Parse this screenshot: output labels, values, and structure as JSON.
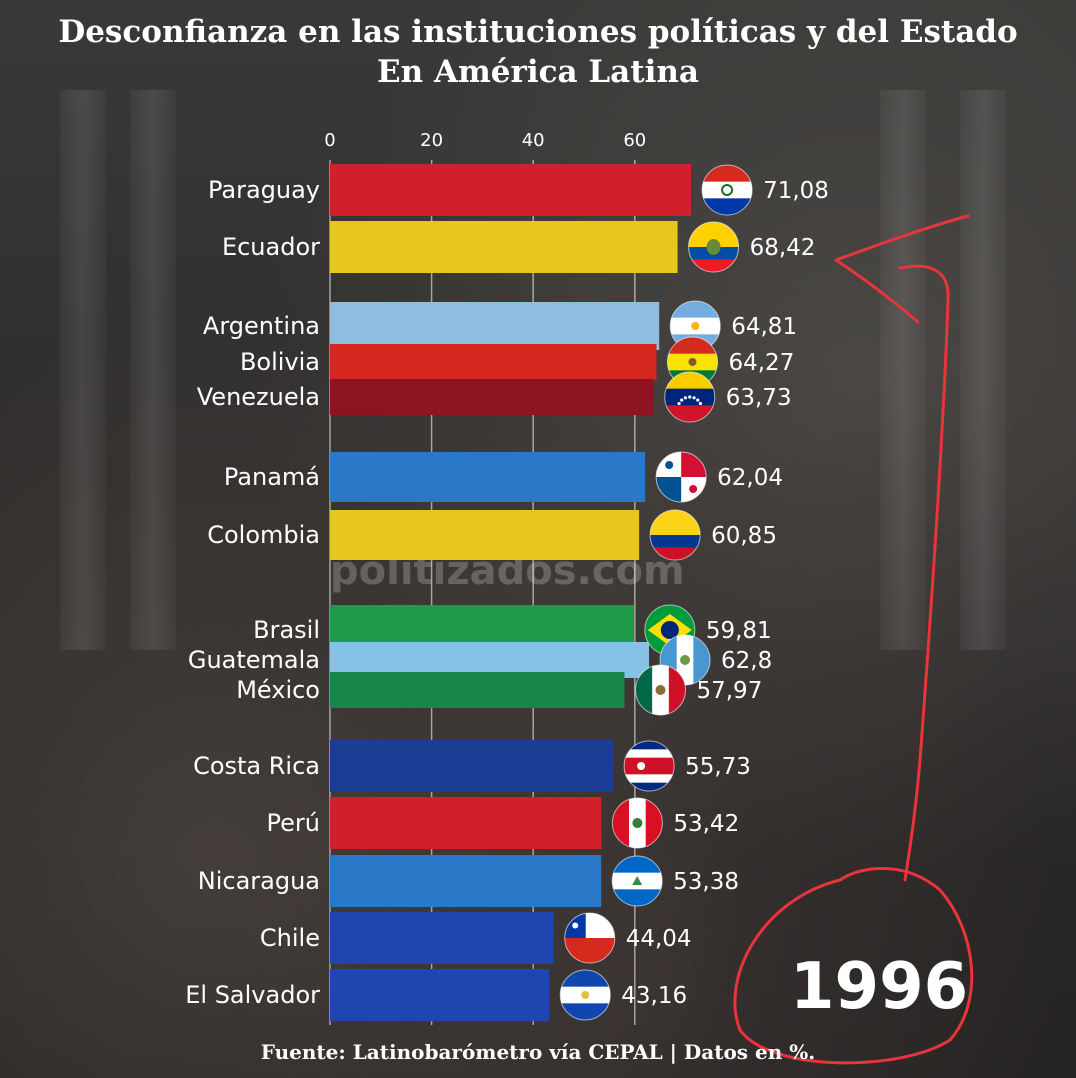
{
  "title_line1": "Desconfianza en las instituciones políticas y del Estado",
  "title_line2": "En América Latina",
  "source": "Fuente: Latinobarómetro vía CEPAL | Datos en %.",
  "watermark": "politizados.com",
  "year": "1996",
  "colors": {
    "annotation": "#e8343a",
    "grid": "rgba(255,255,255,0.55)",
    "text": "#ffffff"
  },
  "chart_data": {
    "type": "bar",
    "orientation": "horizontal",
    "title": "Desconfianza en las instituciones políticas y del Estado En América Latina",
    "xlim": [
      0,
      80
    ],
    "x_ticks": [
      "0",
      "20",
      "40",
      "60"
    ],
    "grid": true,
    "categories": [
      "Paraguay",
      "Ecuador",
      "Argentina",
      "Bolivia",
      "Venezuela",
      "Panamá",
      "Colombia",
      "Brasil",
      "Guatemala",
      "México",
      "Costa Rica",
      "Perú",
      "Nicaragua",
      "Chile",
      "El Salvador"
    ],
    "values": [
      71.08,
      68.42,
      64.81,
      64.27,
      63.73,
      62.04,
      60.85,
      59.81,
      62.8,
      57.97,
      55.73,
      53.42,
      53.38,
      44.04,
      43.16
    ],
    "value_labels": [
      "71,08",
      "68,42",
      "64,81",
      "64,27",
      "63,73",
      "62,04",
      "60,85",
      "59,81",
      "62,8",
      "57,97",
      "55,73",
      "53,42",
      "53,38",
      "44,04",
      "43,16"
    ],
    "bar_colors": [
      "#d0202c",
      "#e8c61e",
      "#8fbde0",
      "#d5261f",
      "#8e1422",
      "#2a78c8",
      "#e8c61e",
      "#1f9a4a",
      "#86c1e6",
      "#18864a",
      "#1c3d94",
      "#d0202c",
      "#2a78c8",
      "#1f45b0",
      "#1f45b0"
    ],
    "flags": [
      "paraguay-flag",
      "ecuador-flag",
      "argentina-flag",
      "bolivia-flag",
      "venezuela-flag",
      "panama-flag",
      "colombia-flag",
      "brazil-flag",
      "guatemala-flag",
      "mexico-flag",
      "costa-rica-flag",
      "peru-flag",
      "nicaragua-flag",
      "chile-flag",
      "el-salvador-flag"
    ]
  }
}
